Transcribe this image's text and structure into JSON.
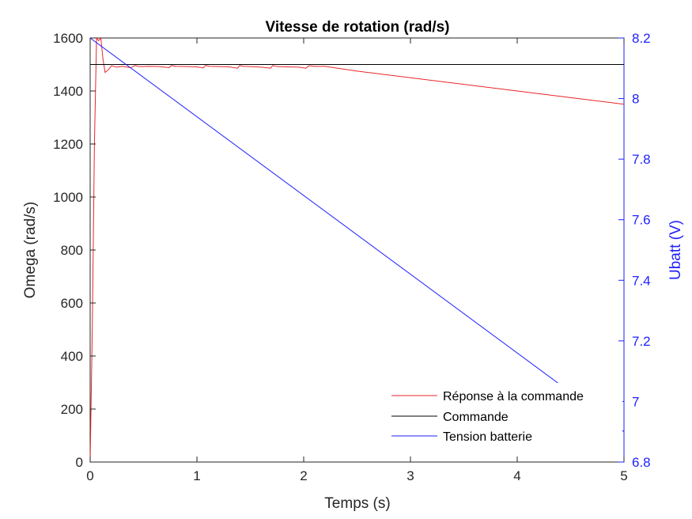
{
  "chart_data": {
    "type": "line",
    "title": "Vitesse de rotation (rad/s)",
    "xlabel": "Temps (s)",
    "ylabel_left": "Omega (rad/s)",
    "ylabel_right": "Ubatt (V)",
    "xlim": [
      0,
      5
    ],
    "ylim_left": [
      0,
      1600
    ],
    "ylim_right": [
      6.8,
      8.2
    ],
    "x_ticks": [
      "0",
      "1",
      "2",
      "3",
      "4",
      "5"
    ],
    "y_left_ticks": [
      "0",
      "200",
      "400",
      "600",
      "800",
      "1000",
      "1200",
      "1400",
      "1600"
    ],
    "y_right_ticks": [
      "6.8",
      "7",
      "7.2",
      "7.4",
      "7.6",
      "7.8",
      "8",
      "8.2"
    ],
    "grid": false,
    "legend_position": "bottom-right",
    "colors": {
      "response": "#e8262b",
      "command": "#000000",
      "battery": "#1f1fff",
      "right_axis": "#1f1fff"
    },
    "series": [
      {
        "name": "Réponse à la commande",
        "axis": "left",
        "color": "#e8262b",
        "x": [
          0,
          0.02,
          0.04,
          0.06,
          0.08,
          0.1,
          0.12,
          0.14,
          0.17,
          0.2,
          0.25,
          0.3,
          0.38,
          0.42,
          0.46,
          0.55,
          0.65,
          0.74,
          0.76,
          0.8,
          0.9,
          1.0,
          1.06,
          1.08,
          1.12,
          1.2,
          1.3,
          1.38,
          1.4,
          1.44,
          1.5,
          1.6,
          1.69,
          1.71,
          1.75,
          1.85,
          1.95,
          2.02,
          2.05,
          2.1,
          2.2,
          2.5,
          3.0,
          3.5,
          4.0,
          4.5,
          5.0
        ],
        "y": [
          0,
          500,
          1200,
          1600,
          1590,
          1600,
          1520,
          1470,
          1480,
          1495,
          1490,
          1493,
          1488,
          1496,
          1492,
          1493,
          1492,
          1488,
          1496,
          1493,
          1492,
          1491,
          1487,
          1496,
          1493,
          1492,
          1491,
          1486,
          1496,
          1493,
          1492,
          1490,
          1486,
          1496,
          1492,
          1491,
          1490,
          1486,
          1495,
          1493,
          1493,
          1475,
          1450,
          1425,
          1400,
          1375,
          1350
        ]
      },
      {
        "name": "Commande",
        "axis": "left",
        "color": "#000000",
        "x": [
          0,
          5
        ],
        "y": [
          1500,
          1500
        ]
      },
      {
        "name": "Tension batterie",
        "axis": "right",
        "color": "#1f1fff",
        "x": [
          0,
          5
        ],
        "y": [
          8.2,
          6.9
        ]
      }
    ]
  }
}
